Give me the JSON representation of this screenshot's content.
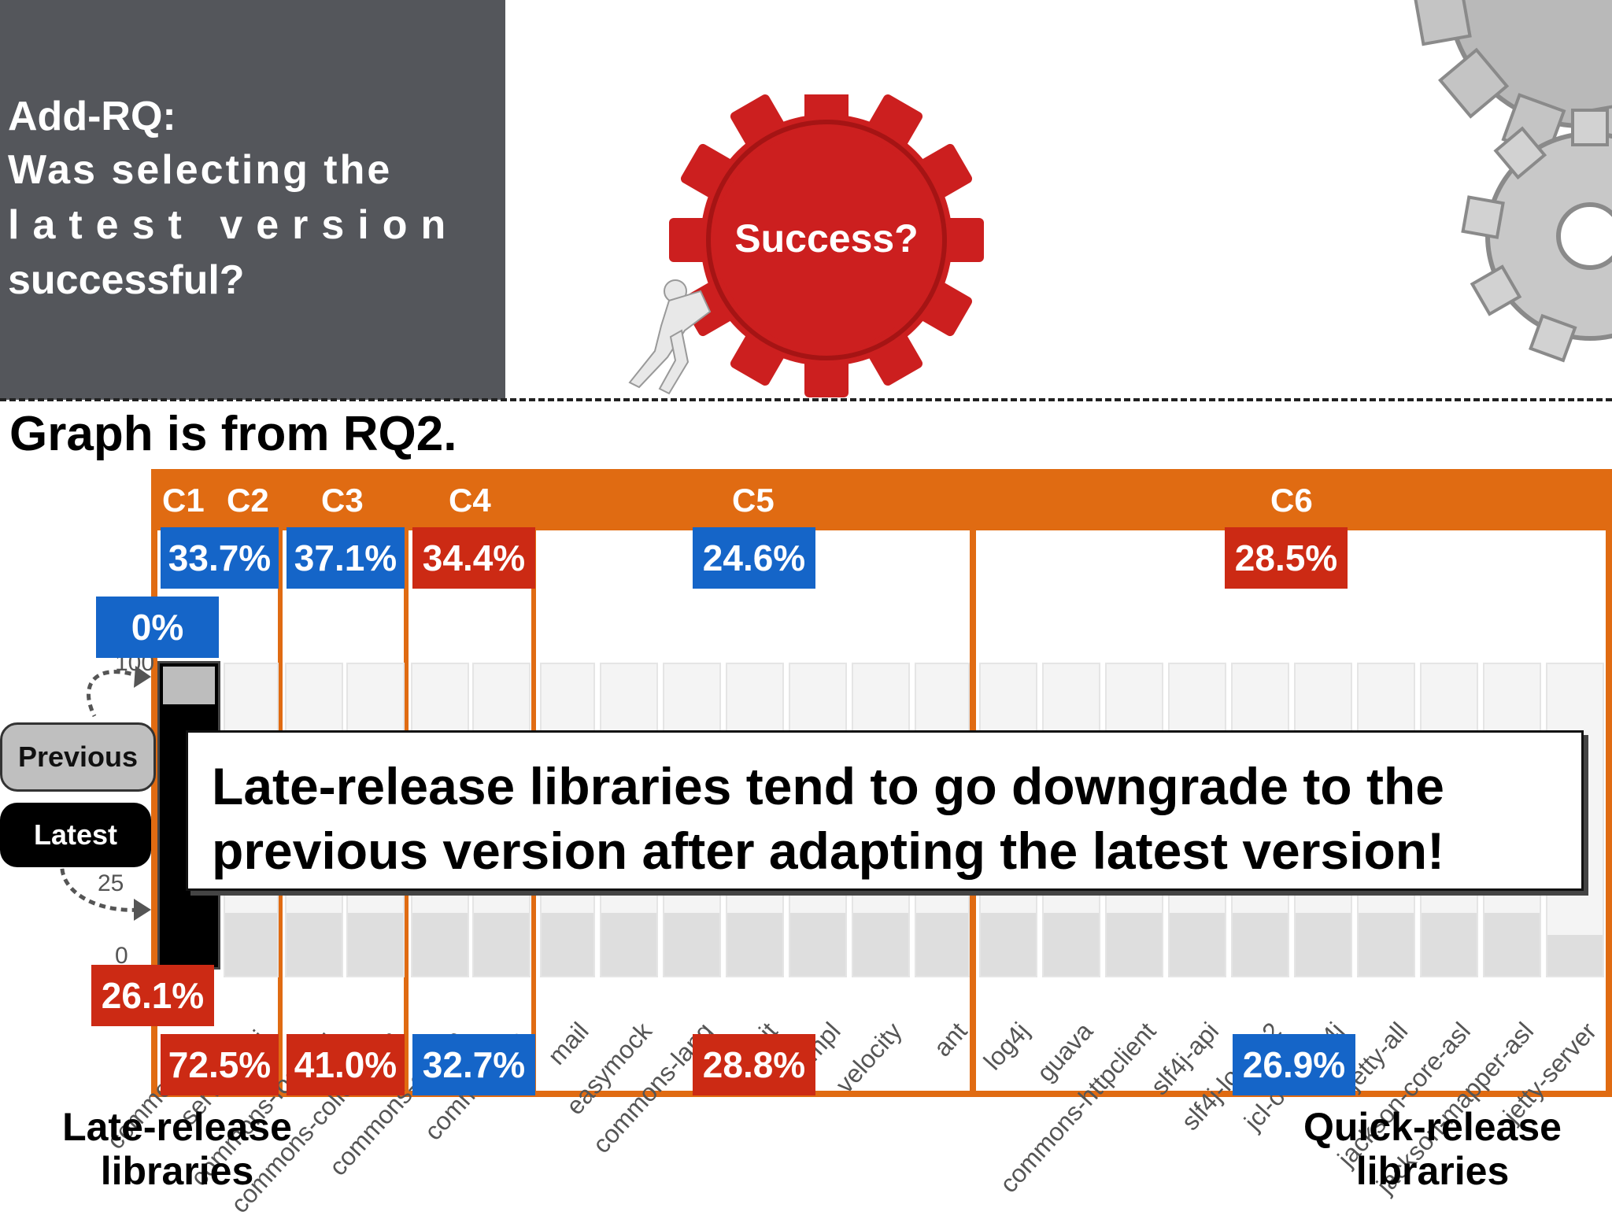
{
  "question": {
    "line1": "Add-RQ:",
    "line2": "Was  selecting  the",
    "line3": "latest   version",
    "line4": "successful?"
  },
  "gear_label": "Success?",
  "graph_title": "Graph is from RQ2.",
  "clusters": [
    {
      "label": "C1",
      "top": "",
      "bottom": ""
    },
    {
      "label": "C2",
      "top": "33.7%",
      "bottom": "72.5%"
    },
    {
      "label": "C3",
      "top": "37.1%",
      "bottom": "41.0%"
    },
    {
      "label": "C4",
      "top": "34.4%",
      "bottom": "32.7%"
    },
    {
      "label": "C5",
      "top": "24.6%",
      "bottom": "28.8%"
    },
    {
      "label": "C6",
      "top": "28.5%",
      "bottom": "26.9%"
    }
  ],
  "c1_top": "0%",
  "c1_bottom": "26.1%",
  "y_ticks": [
    "100",
    "25",
    "0"
  ],
  "legend": {
    "previous": "Previous",
    "latest": "Latest"
  },
  "x_labels": [
    "commons-...",
    "servlet-api",
    "commons-logging",
    "commons-collections",
    "commons-codec",
    "commons-io",
    "mail",
    "easymock",
    "commons-lang",
    "junit",
    "impl",
    "velocity",
    "ant",
    "log4j",
    "guava",
    "commons-httpclient",
    "slf4j-api",
    "slf4j-log4j12",
    "jcl-over-slf4j",
    "jetty-all",
    "jackson-core-asl",
    "jackson-mapper-asl",
    "jetty-server"
  ],
  "callout": {
    "line1": "Late-release libraries tend to go downgrade to the",
    "line2": "previous version after adapting the latest version!"
  },
  "late_label": {
    "l1": "Late-release",
    "l2": "libraries"
  },
  "quick_label": {
    "l1": "Quick-release",
    "l2": "libraries"
  },
  "colors": {
    "orange": "#e06b12",
    "blue": "#1565c8",
    "red": "#cc2a14",
    "slate": "#54565b"
  }
}
